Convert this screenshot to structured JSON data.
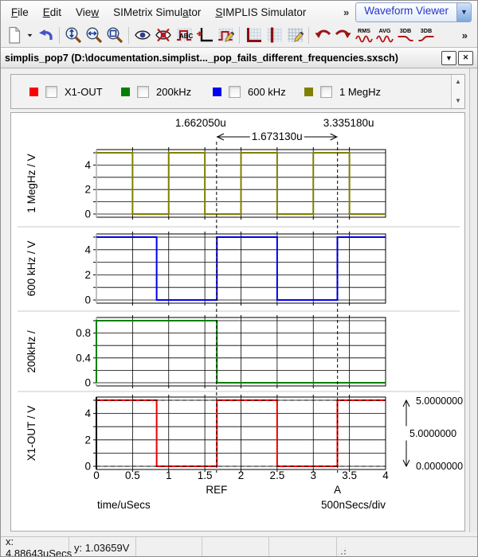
{
  "menu_bar": {
    "items": [
      {
        "label": "File",
        "underline_index": 0
      },
      {
        "label": "Edit",
        "underline_index": 0
      },
      {
        "label": "View",
        "underline_index": 3
      },
      {
        "label": "SIMetrix Simulator",
        "underline_index": 14
      },
      {
        "label": "SIMPLIS Simulator",
        "underline_index": 0
      }
    ],
    "overflow_chevron": "»",
    "viewer_select": {
      "value": "Waveform Viewer"
    }
  },
  "toolbar": {
    "groups": [
      [
        "new-document",
        "new-document-dropdown",
        "undo"
      ],
      [
        "zoom-fit-y",
        "zoom-fit-x",
        "zoom-box"
      ],
      [
        "show-curves",
        "hide-curves",
        "label-curves",
        "add-axis",
        "edit-graph"
      ],
      [
        "show-grid",
        "add-cursor",
        "edit-grid"
      ],
      [
        "undo-zoom",
        "redo-zoom",
        "rms",
        "avg",
        "3db-lowpass",
        "3db-highpass"
      ]
    ],
    "overflow_chevron": "»"
  },
  "tab": {
    "title": "simplis_pop7 (D:\\documentation.simplist..._pop_fails_different_frequencies.sxsch)"
  },
  "legend": {
    "items": [
      {
        "label": "X1-OUT",
        "color": "#ff0000",
        "checked": false
      },
      {
        "label": "200kHz",
        "color": "#008000",
        "checked": false
      },
      {
        "label": "600 kHz",
        "color": "#0000ee",
        "checked": false
      },
      {
        "label": "1 MegHz",
        "color": "#808000",
        "checked": false
      }
    ]
  },
  "chart_data": {
    "type": "line",
    "x_range": [
      0,
      4
    ],
    "xlabel": "time/uSecs",
    "x_scale_label": "500nSecs/div",
    "grid": true,
    "x_ticks": [
      {
        "v": 0,
        "label": "0"
      },
      {
        "v": 0.5,
        "label": "0.5"
      },
      {
        "v": 1,
        "label": "1"
      },
      {
        "v": 1.5,
        "label": "1.5"
      },
      {
        "v": 2,
        "label": "2"
      },
      {
        "v": 2.5,
        "label": "2.5"
      },
      {
        "v": 3,
        "label": "3"
      },
      {
        "v": 3.5,
        "label": "3.5"
      },
      {
        "v": 4,
        "label": "4"
      }
    ],
    "cursors": {
      "ref": {
        "label": "REF",
        "x": 1.66205,
        "readout": "1.662050u"
      },
      "a": {
        "label": "A",
        "x": 3.33518,
        "readout": "3.335180u"
      },
      "delta_readout": "1.673130u"
    },
    "plots": [
      {
        "name": "1 MegHz",
        "ylabel": "1 MegHz / V",
        "color": "#808000",
        "ylim": [
          0,
          5
        ],
        "grid_step": 1,
        "y_ticks": [
          {
            "v": 0,
            "label": "0"
          },
          {
            "v": 2,
            "label": "2"
          },
          {
            "v": 4,
            "label": "4"
          }
        ],
        "points": [
          [
            0,
            5
          ],
          [
            0.5,
            5
          ],
          [
            0.5,
            0
          ],
          [
            1,
            0
          ],
          [
            1,
            5
          ],
          [
            1.5,
            5
          ],
          [
            1.5,
            0
          ],
          [
            2,
            0
          ],
          [
            2,
            5
          ],
          [
            2.5,
            5
          ],
          [
            2.5,
            0
          ],
          [
            3,
            0
          ],
          [
            3,
            5
          ],
          [
            3.5,
            5
          ],
          [
            3.5,
            0
          ],
          [
            4,
            0
          ]
        ]
      },
      {
        "name": "600 kHz",
        "ylabel": "600 kHz / V",
        "color": "#0000ee",
        "ylim": [
          0,
          5
        ],
        "grid_step": 1,
        "y_ticks": [
          {
            "v": 0,
            "label": "0"
          },
          {
            "v": 2,
            "label": "2"
          },
          {
            "v": 4,
            "label": "4"
          }
        ],
        "points": [
          [
            0,
            5
          ],
          [
            0.8333,
            5
          ],
          [
            0.8333,
            0
          ],
          [
            1.6667,
            0
          ],
          [
            1.6667,
            5
          ],
          [
            2.5,
            5
          ],
          [
            2.5,
            0
          ],
          [
            3.3333,
            0
          ],
          [
            3.3333,
            5
          ],
          [
            4,
            5
          ]
        ]
      },
      {
        "name": "200kHz",
        "ylabel": "200kHz /",
        "color": "#008000",
        "ylim": [
          0,
          1
        ],
        "grid_step": 0.2,
        "y_ticks": [
          {
            "v": 0,
            "label": "0"
          },
          {
            "v": 0.4,
            "label": "0.4"
          },
          {
            "v": 0.8,
            "label": "0.8"
          }
        ],
        "points": [
          [
            0,
            0
          ],
          [
            0,
            1
          ],
          [
            1.6667,
            1
          ],
          [
            1.6667,
            0
          ],
          [
            4,
            0
          ]
        ]
      },
      {
        "name": "X1-OUT",
        "ylabel": "X1-OUT / V",
        "color": "#ee0000",
        "ylim": [
          0,
          5
        ],
        "grid_step": 1,
        "y_ticks": [
          {
            "v": 0,
            "label": "0"
          },
          {
            "v": 2,
            "label": "2"
          },
          {
            "v": 4,
            "label": "4"
          }
        ],
        "points": [
          [
            0,
            5
          ],
          [
            0.8333,
            5
          ],
          [
            0.8333,
            0
          ],
          [
            1.6667,
            0
          ],
          [
            1.6667,
            5
          ],
          [
            2.5,
            5
          ],
          [
            2.5,
            0
          ],
          [
            3.3333,
            0
          ],
          [
            3.3333,
            5
          ],
          [
            4,
            5
          ]
        ],
        "dashed_hlines": [
          5,
          0
        ],
        "cursor_readouts": {
          "ref_y": "5.0000000",
          "delta_y": "5.0000000",
          "a_y": "0.0000000"
        }
      }
    ]
  },
  "status_bar": {
    "x": "x: 4.88643uSecs",
    "y": "y: 1.03659V"
  }
}
